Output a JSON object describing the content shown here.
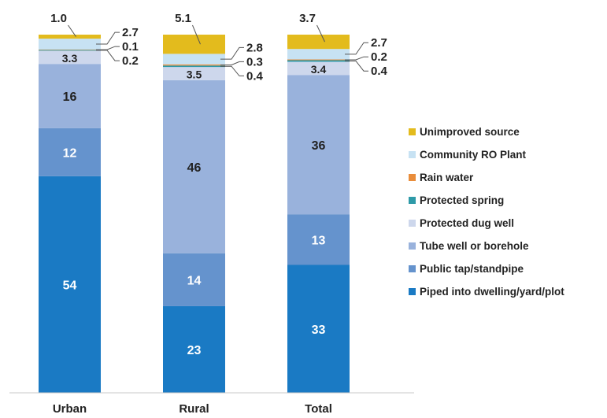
{
  "chart_data": {
    "type": "bar",
    "stacked": true,
    "percent_stacked": true,
    "categories": [
      "Urban",
      "Rural",
      "Total"
    ],
    "series": [
      {
        "name": "Piped into dwelling/yard/plot",
        "color": "#1a7ac4",
        "values": [
          54,
          23,
          33
        ]
      },
      {
        "name": "Public tap/standpipe",
        "color": "#6593cd",
        "values": [
          12,
          14,
          13
        ]
      },
      {
        "name": "Tube well or borehole",
        "color": "#99b2dc",
        "values": [
          16,
          46,
          36
        ]
      },
      {
        "name": "Protected dug well",
        "color": "#cdd7ec",
        "values": [
          3.3,
          3.5,
          3.4
        ]
      },
      {
        "name": "Protected spring",
        "color": "#2e9aa8",
        "values": [
          0.2,
          0.4,
          0.4
        ]
      },
      {
        "name": "Rain water",
        "color": "#e98d3b",
        "values": [
          0.1,
          0.3,
          0.2
        ]
      },
      {
        "name": "Community RO Plant",
        "color": "#c7e2f3",
        "values": [
          2.7,
          2.8,
          2.7
        ]
      },
      {
        "name": "Unimproved source",
        "color": "#e3bb1d",
        "values": [
          1.0,
          5.1,
          3.7
        ]
      }
    ],
    "labels": [
      [
        "54",
        "23",
        "33"
      ],
      [
        "12",
        "14",
        "13"
      ],
      [
        "16",
        "46",
        "36"
      ],
      [
        "3.3",
        "3.5",
        "3.4"
      ],
      [
        "0.2",
        "0.4",
        "0.4"
      ],
      [
        "0.1",
        "0.3",
        "0.2"
      ],
      [
        "2.7",
        "2.8",
        "2.7"
      ],
      [
        "1.0",
        "5.1",
        "3.7"
      ]
    ],
    "title": "",
    "xlabel": "",
    "ylabel": "",
    "legend_position": "right",
    "grid": false
  }
}
